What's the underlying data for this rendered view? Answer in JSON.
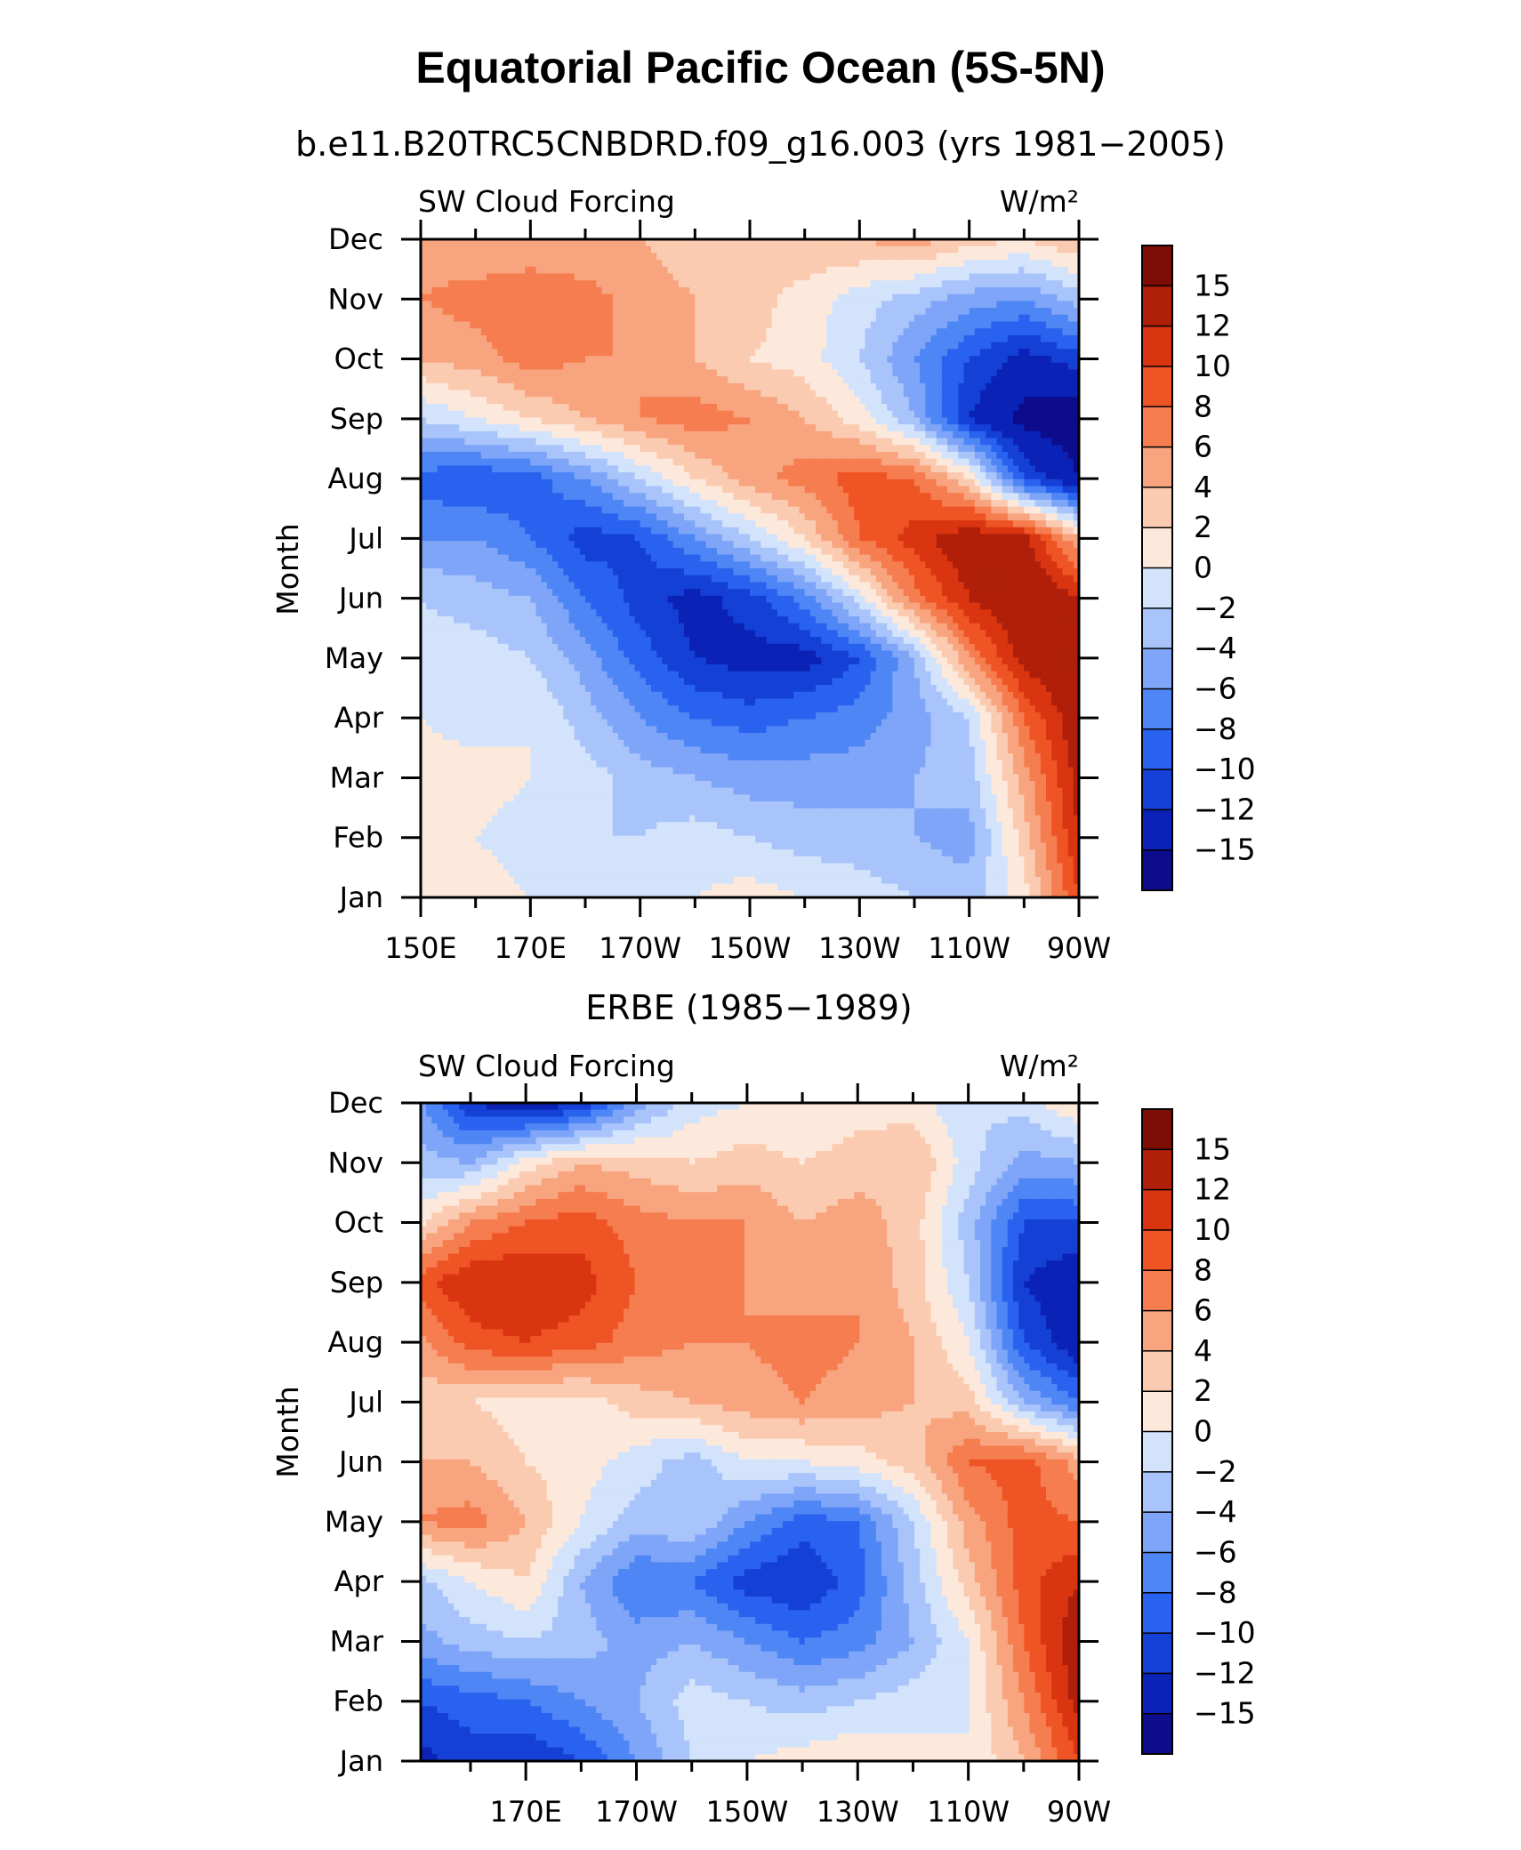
{
  "title": "Equatorial Pacific Ocean (5S-5N)",
  "colors": {
    "levels": [
      "#0d0d8c",
      "#0a22b5",
      "#1540d6",
      "#2a62f0",
      "#4f86f5",
      "#7ea5f8",
      "#a9c4fa",
      "#d2e3fb",
      "#fde9dc",
      "#fbcbb1",
      "#f8a47f",
      "#f57d4f",
      "#ef5425",
      "#d93510",
      "#b01f0a",
      "#7e0d06"
    ]
  },
  "chart_data": [
    {
      "type": "heatmap",
      "subtitle": "b.e11.B20TRC5CNBDRD.f09_g16.003 (yrs 1981−2005)",
      "left_label": "SW Cloud Forcing",
      "right_label": "W/m²",
      "ylabel": "Month",
      "y_categories": [
        "Jan",
        "Feb",
        "Mar",
        "Apr",
        "May",
        "Jun",
        "Jul",
        "Aug",
        "Sep",
        "Oct",
        "Nov",
        "Dec"
      ],
      "x_tick_labels": [
        "150E",
        "170E",
        "170W",
        "150W",
        "130W",
        "110W",
        "90W"
      ],
      "x_tick_lon": [
        150,
        170,
        190,
        210,
        230,
        250,
        270
      ],
      "xlim": [
        150,
        270
      ],
      "colorbar_labels": [
        "15",
        "12",
        "10",
        "8",
        "6",
        "4",
        "2",
        "0",
        "−2",
        "−4",
        "−6",
        "−8",
        "−10",
        "−12",
        "−15"
      ],
      "units": "W/m²",
      "lon": [
        150,
        160,
        170,
        180,
        190,
        200,
        210,
        220,
        230,
        240,
        250,
        260,
        270
      ],
      "values": [
        [
          2,
          1,
          0,
          -1,
          -1,
          0,
          1,
          0,
          -1,
          -2,
          -3,
          1,
          10
        ],
        [
          2,
          0,
          -1,
          -2,
          -2,
          -1,
          -2,
          -3,
          -3,
          -4,
          -5,
          3,
          12
        ],
        [
          1,
          1,
          0,
          -1,
          -3,
          -4,
          -5,
          -5,
          -5,
          -4,
          -3,
          5,
          13
        ],
        [
          0,
          -1,
          0,
          -3,
          -6,
          -8,
          -9,
          -8,
          -7,
          -5,
          -2,
          8,
          14
        ],
        [
          -1,
          -1,
          -2,
          -5,
          -9,
          -12,
          -13,
          -13,
          -10,
          -4,
          6,
          13,
          15
        ],
        [
          -2,
          -3,
          -4,
          -8,
          -11,
          -13,
          -11,
          -7,
          -1,
          7,
          12,
          15,
          12
        ],
        [
          -6,
          -6,
          -8,
          -11,
          -10,
          -6,
          -2,
          2,
          8,
          11,
          14,
          13,
          4
        ],
        [
          -9,
          -10,
          -9,
          -6,
          -2,
          2,
          5,
          7,
          9,
          8,
          2,
          -10,
          -15
        ],
        [
          -2,
          0,
          2,
          4,
          6,
          7,
          6,
          4,
          1,
          -4,
          -12,
          -16,
          -17
        ],
        [
          4,
          5,
          7,
          6,
          6,
          4,
          2,
          1,
          -2,
          -6,
          -10,
          -13,
          -11
        ],
        [
          6,
          7,
          8,
          7,
          5,
          4,
          3,
          1,
          -1,
          -3,
          -5,
          -6,
          -3
        ],
        [
          5,
          4,
          4,
          4,
          4,
          3,
          3,
          4,
          4,
          5,
          3,
          2,
          4
        ]
      ]
    },
    {
      "type": "heatmap",
      "subtitle": "ERBE (1985−1989)",
      "left_label": "SW Cloud Forcing",
      "right_label": "W/m²",
      "ylabel": "Month",
      "y_categories": [
        "Jan",
        "Feb",
        "Mar",
        "Apr",
        "May",
        "Jun",
        "Jul",
        "Aug",
        "Sep",
        "Oct",
        "Nov",
        "Dec"
      ],
      "x_tick_labels": [
        "170E",
        "170W",
        "150W",
        "130W",
        "110W",
        "90W"
      ],
      "x_tick_lon": [
        170,
        190,
        210,
        230,
        250,
        270
      ],
      "xlim": [
        151,
        270
      ],
      "colorbar_labels": [
        "15",
        "12",
        "10",
        "8",
        "6",
        "4",
        "2",
        "0",
        "−2",
        "−4",
        "−6",
        "−8",
        "−10",
        "−12",
        "−15"
      ],
      "units": "W/m²",
      "lon": [
        150,
        160,
        170,
        180,
        190,
        200,
        210,
        220,
        230,
        240,
        250,
        260,
        270
      ],
      "values": [
        [
          -13,
          -11,
          -12,
          -10,
          -6,
          -2,
          0,
          1,
          2,
          1,
          0,
          4,
          10
        ],
        [
          -10,
          -9,
          -8,
          -6,
          -4,
          -1,
          -2,
          -3,
          -2,
          -1,
          0,
          6,
          13
        ],
        [
          -5,
          -3,
          -2,
          -3,
          -5,
          -4,
          -6,
          -8,
          -7,
          -4,
          0,
          8,
          14
        ],
        [
          -3,
          0,
          2,
          -4,
          -8,
          -8,
          -11,
          -12,
          -9,
          -3,
          3,
          9,
          12
        ],
        [
          6,
          7,
          4,
          0,
          -3,
          -2,
          -6,
          -9,
          -8,
          -2,
          5,
          9,
          8
        ],
        [
          4,
          4,
          2,
          1,
          -1,
          -3,
          0,
          0,
          1,
          3,
          8,
          9,
          5
        ],
        [
          3,
          2,
          1,
          1,
          3,
          4,
          5,
          6,
          5,
          4,
          3,
          -4,
          -8
        ],
        [
          5,
          9,
          10,
          9,
          7,
          6,
          6,
          7,
          6,
          4,
          0,
          -10,
          -14
        ],
        [
          9,
          12,
          12,
          11,
          8,
          7,
          6,
          5,
          6,
          3,
          -2,
          -12,
          -14
        ],
        [
          1,
          6,
          8,
          9,
          7,
          6,
          6,
          4,
          5,
          3,
          -3,
          -10,
          -10
        ],
        [
          -3,
          -4,
          1,
          4,
          3,
          2,
          3,
          2,
          3,
          4,
          -1,
          -5,
          -4
        ],
        [
          -5,
          -12,
          -14,
          -12,
          -5,
          -1,
          0,
          0,
          1,
          1,
          -2,
          -1,
          2
        ]
      ]
    }
  ]
}
